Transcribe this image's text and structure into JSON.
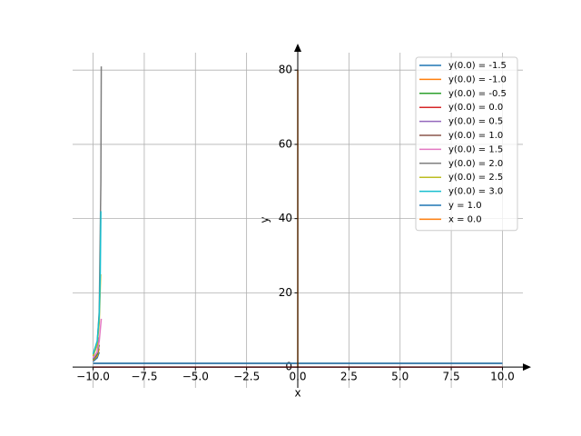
{
  "chart_data": {
    "type": "line",
    "xlabel": "x",
    "ylabel": "y",
    "xlim": [
      -11,
      11
    ],
    "ylim": [
      -5.6,
      84.7
    ],
    "xticks": [
      {
        "value": -10,
        "label": "−10.0"
      },
      {
        "value": -7.5,
        "label": "−7.5"
      },
      {
        "value": -5,
        "label": "−5.0"
      },
      {
        "value": -2.5,
        "label": "−2.5"
      },
      {
        "value": 0,
        "label": "0.0"
      },
      {
        "value": 2.5,
        "label": "2.5"
      },
      {
        "value": 5,
        "label": "5.0"
      },
      {
        "value": 7.5,
        "label": "7.5"
      },
      {
        "value": 10,
        "label": "10.0"
      }
    ],
    "yticks": [
      0,
      20,
      40,
      60,
      80
    ],
    "grid": true,
    "legend": "upper-right",
    "series": [
      {
        "name": "y(0.0) = -1.5",
        "color": "#1f77b4",
        "x": [
          -10,
          -9.8,
          -9.7
        ],
        "values": [
          1.5,
          2.5,
          4
        ]
      },
      {
        "name": "y(0.0) = -1.0",
        "color": "#ff7f0e",
        "x": [
          -10,
          -9.8,
          -9.7
        ],
        "values": [
          1.8,
          3,
          5
        ]
      },
      {
        "name": "y(0.0) = -0.5",
        "color": "#2ca02c",
        "x": [
          -10,
          -9.8,
          -9.7
        ],
        "values": [
          2,
          3.5,
          6
        ]
      },
      {
        "name": "y(0.0) = 0.0",
        "color": "#d62728",
        "x": [
          -10,
          10
        ],
        "values": [
          0,
          0
        ]
      },
      {
        "name": "y(0.0) = 0.5",
        "color": "#9467bd",
        "x": [
          -10,
          -9.8,
          -9.7
        ],
        "values": [
          2.2,
          4,
          8
        ]
      },
      {
        "name": "y(0.0) = 1.0",
        "color": "#8c564b",
        "x": [
          -10,
          10
        ],
        "values": [
          1,
          1
        ]
      },
      {
        "name": "y(0.0) = 1.5",
        "color": "#e377c2",
        "x": [
          -10,
          -9.8,
          -9.7,
          -9.6
        ],
        "values": [
          2.5,
          4,
          7,
          13
        ]
      },
      {
        "name": "y(0.0) = 2.0",
        "color": "#7f7f7f",
        "x": [
          -10,
          -9.8,
          -9.7,
          -9.62,
          -9.6
        ],
        "values": [
          3,
          6,
          15,
          50,
          81
        ]
      },
      {
        "name": "y(0.0) = 2.5",
        "color": "#bcbd22",
        "x": [
          -10,
          -9.8,
          -9.7,
          -9.63
        ],
        "values": [
          3,
          6,
          12,
          25
        ]
      },
      {
        "name": "y(0.0) = 3.0",
        "color": "#17becf",
        "x": [
          -10,
          -9.8,
          -9.7,
          -9.65,
          -9.62
        ],
        "values": [
          3.5,
          7,
          14,
          25,
          42
        ]
      },
      {
        "name": "y = 1.0",
        "color": "#1f77b4",
        "x": [
          -10,
          10
        ],
        "values": [
          1,
          1
        ]
      },
      {
        "name": "x = 0.0",
        "color": "#ff7f0e",
        "x": [
          0,
          0
        ],
        "values": [
          0,
          80
        ]
      }
    ]
  }
}
